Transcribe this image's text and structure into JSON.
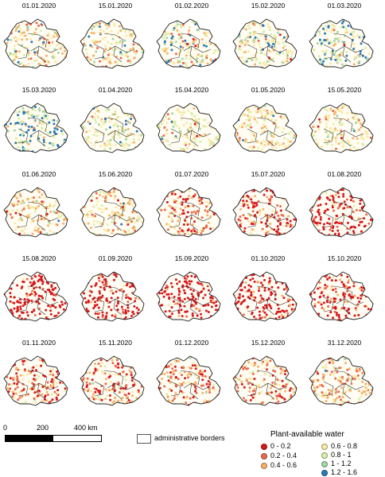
{
  "maps": [
    {
      "date": "01.01.2020",
      "dist": [
        0.02,
        0.1,
        0.3,
        0.3,
        0.1,
        0.1,
        0.08
      ]
    },
    {
      "date": "15.01.2020",
      "dist": [
        0.02,
        0.1,
        0.3,
        0.3,
        0.12,
        0.1,
        0.06
      ]
    },
    {
      "date": "01.02.2020",
      "dist": [
        0.02,
        0.06,
        0.2,
        0.3,
        0.15,
        0.12,
        0.15
      ]
    },
    {
      "date": "15.02.2020",
      "dist": [
        0.02,
        0.05,
        0.15,
        0.35,
        0.18,
        0.12,
        0.13
      ]
    },
    {
      "date": "01.03.2020",
      "dist": [
        0.01,
        0.02,
        0.08,
        0.25,
        0.2,
        0.18,
        0.26
      ]
    },
    {
      "date": "15.03.2020",
      "dist": [
        0.0,
        0.01,
        0.05,
        0.18,
        0.2,
        0.2,
        0.36
      ]
    },
    {
      "date": "01.04.2020",
      "dist": [
        0.01,
        0.02,
        0.08,
        0.35,
        0.3,
        0.14,
        0.1
      ]
    },
    {
      "date": "15.04.2020",
      "dist": [
        0.02,
        0.05,
        0.13,
        0.45,
        0.25,
        0.07,
        0.03
      ]
    },
    {
      "date": "01.05.2020",
      "dist": [
        0.02,
        0.06,
        0.2,
        0.5,
        0.16,
        0.04,
        0.02
      ]
    },
    {
      "date": "15.05.2020",
      "dist": [
        0.02,
        0.06,
        0.2,
        0.48,
        0.18,
        0.04,
        0.02
      ]
    },
    {
      "date": "01.06.2020",
      "dist": [
        0.06,
        0.14,
        0.35,
        0.3,
        0.1,
        0.03,
        0.02
      ]
    },
    {
      "date": "15.06.2020",
      "dist": [
        0.06,
        0.14,
        0.35,
        0.3,
        0.1,
        0.03,
        0.02
      ]
    },
    {
      "date": "01.07.2020",
      "dist": [
        0.3,
        0.25,
        0.25,
        0.15,
        0.05,
        0.0,
        0.0
      ]
    },
    {
      "date": "15.07.2020",
      "dist": [
        0.45,
        0.25,
        0.2,
        0.08,
        0.02,
        0.0,
        0.0
      ]
    },
    {
      "date": "01.08.2020",
      "dist": [
        0.7,
        0.18,
        0.08,
        0.04,
        0.0,
        0.0,
        0.0
      ]
    },
    {
      "date": "15.08.2020",
      "dist": [
        0.8,
        0.12,
        0.05,
        0.03,
        0.0,
        0.0,
        0.0
      ]
    },
    {
      "date": "01.09.2020",
      "dist": [
        0.8,
        0.12,
        0.05,
        0.03,
        0.0,
        0.0,
        0.0
      ]
    },
    {
      "date": "15.09.2020",
      "dist": [
        0.85,
        0.09,
        0.04,
        0.02,
        0.0,
        0.0,
        0.0
      ]
    },
    {
      "date": "01.10.2020",
      "dist": [
        0.75,
        0.15,
        0.06,
        0.04,
        0.0,
        0.0,
        0.0
      ]
    },
    {
      "date": "15.10.2020",
      "dist": [
        0.6,
        0.22,
        0.12,
        0.06,
        0.0,
        0.0,
        0.0
      ]
    },
    {
      "date": "01.11.2020",
      "dist": [
        0.3,
        0.3,
        0.25,
        0.1,
        0.04,
        0.01,
        0.0
      ]
    },
    {
      "date": "15.11.2020",
      "dist": [
        0.25,
        0.3,
        0.28,
        0.12,
        0.04,
        0.01,
        0.0
      ]
    },
    {
      "date": "01.12.2020",
      "dist": [
        0.2,
        0.3,
        0.3,
        0.14,
        0.05,
        0.01,
        0.0
      ]
    },
    {
      "date": "15.12.2020",
      "dist": [
        0.15,
        0.3,
        0.3,
        0.17,
        0.06,
        0.02,
        0.0
      ]
    },
    {
      "date": "31.12.2020",
      "dist": [
        0.06,
        0.2,
        0.34,
        0.26,
        0.1,
        0.03,
        0.01
      ]
    }
  ],
  "scalebar": {
    "ticks": [
      "0",
      "200",
      "400 km"
    ]
  },
  "borders_legend": {
    "label": "administrative borders"
  },
  "water_legend": {
    "title": "Plant-available water",
    "classes": [
      {
        "label": "0 - 0.2",
        "color": "#d7191c"
      },
      {
        "label": "0.2 - 0.4",
        "color": "#ea6a4e"
      },
      {
        "label": "0.4 - 0.6",
        "color": "#f6b26b"
      },
      {
        "label": "0.6 - 0.8",
        "color": "#fbe9a6"
      },
      {
        "label": "0.8 - 1",
        "color": "#d8eea4"
      },
      {
        "label": "1 - 1.2",
        "color": "#a4d7a8"
      },
      {
        "label": "1.2 - 1.6",
        "color": "#2c7bb6"
      }
    ]
  }
}
